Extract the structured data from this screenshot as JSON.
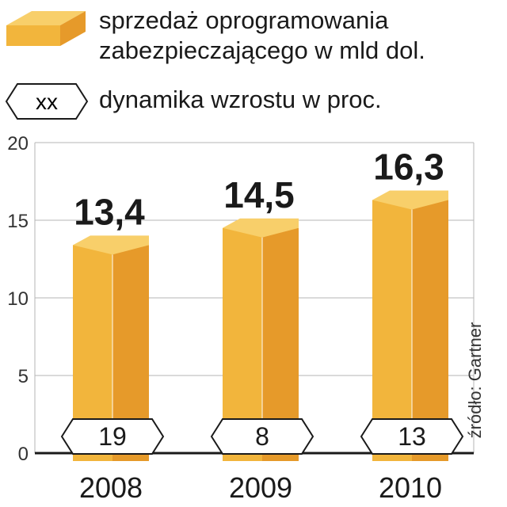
{
  "legend": {
    "bar_label_line1": "sprzedaż oprogramowania",
    "bar_label_line2": "zabezpieczającego w mld dol.",
    "badge_sample": "xx",
    "badge_label": "dynamika wzrostu w proc."
  },
  "source": "źródło: Gartner",
  "colors": {
    "bar_front": "#f2b53c",
    "bar_side": "#e69a2a",
    "bar_top": "#f8cf6a",
    "text": "#1a1a1a"
  },
  "chart_data": {
    "type": "bar",
    "categories": [
      "2008",
      "2009",
      "2010"
    ],
    "values": [
      13.4,
      14.5,
      16.3
    ],
    "value_labels": [
      "13,4",
      "14,5",
      "16,3"
    ],
    "growth_labels": [
      "19",
      "8",
      "13"
    ],
    "yticks": [
      "0",
      "5",
      "10",
      "15",
      "20"
    ],
    "ylim": [
      0,
      20
    ],
    "grid": true
  }
}
